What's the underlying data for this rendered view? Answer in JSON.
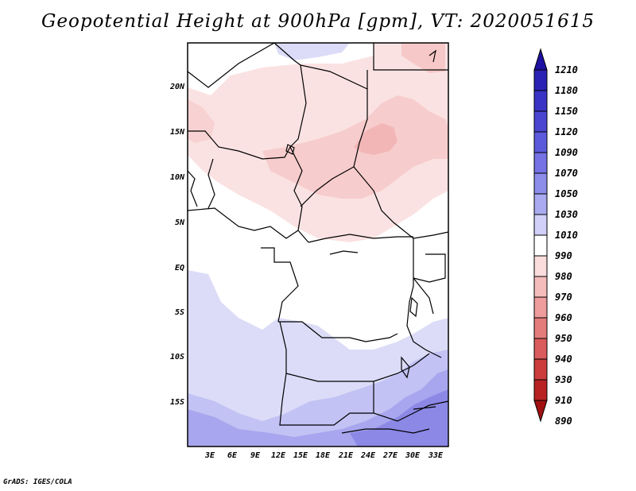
{
  "title": "Geopotential Height at 900hPa [gpm], VT: 2020051615",
  "footer": "GrADS: IGES/COLA",
  "map": {
    "lat_labels": [
      "20N",
      "15N",
      "10N",
      "5N",
      "EQ",
      "5S",
      "10S",
      "15S"
    ],
    "lon_labels": [
      "3E",
      "6E",
      "9E",
      "12E",
      "15E",
      "18E",
      "21E",
      "24E",
      "27E",
      "30E",
      "33E"
    ]
  },
  "colorbar": {
    "levels": [
      "1210",
      "1180",
      "1150",
      "1120",
      "1090",
      "1070",
      "1050",
      "1030",
      "1010",
      "990",
      "980",
      "970",
      "960",
      "950",
      "940",
      "930",
      "910",
      "890"
    ],
    "colors": [
      "#1e10a0",
      "#2a22b4",
      "#3a34c6",
      "#4a46d2",
      "#5c5adc",
      "#7472e4",
      "#8c8cea",
      "#aaaaf0",
      "#d0d0f8",
      "#ffffff",
      "#fadcdc",
      "#f5bcbc",
      "#ee9c9c",
      "#e47c7c",
      "#da5c5c",
      "#cc3c3c",
      "#b82222",
      "#a01010"
    ]
  }
}
